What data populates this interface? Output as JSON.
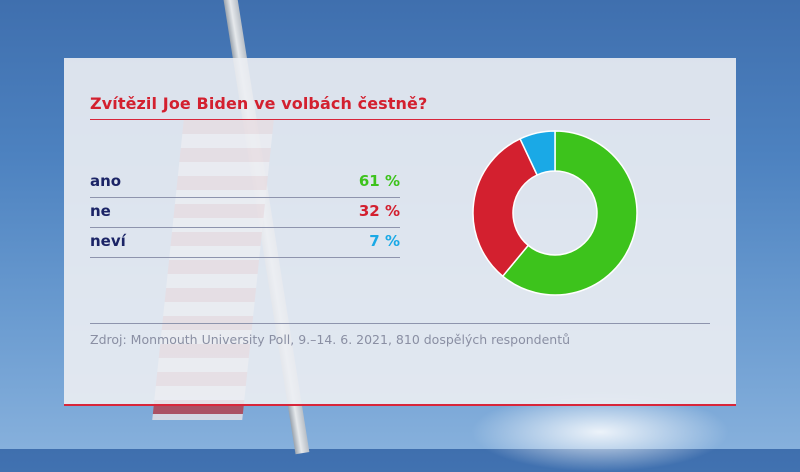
{
  "chart_data": {
    "type": "pie",
    "title": "Zvítězil Joe Biden ve volbách čestně?",
    "categories": [
      "ano",
      "ne",
      "neví"
    ],
    "values": [
      61,
      32,
      7
    ],
    "value_labels": [
      "61 %",
      "32 %",
      "7 %"
    ],
    "colors": [
      "#3dc31c",
      "#d3202f",
      "#1aa9e6"
    ],
    "donut": true,
    "source": "Zdroj: Monmouth University Poll, 9.–14. 6. 2021, 810 dospělých respondentů"
  }
}
